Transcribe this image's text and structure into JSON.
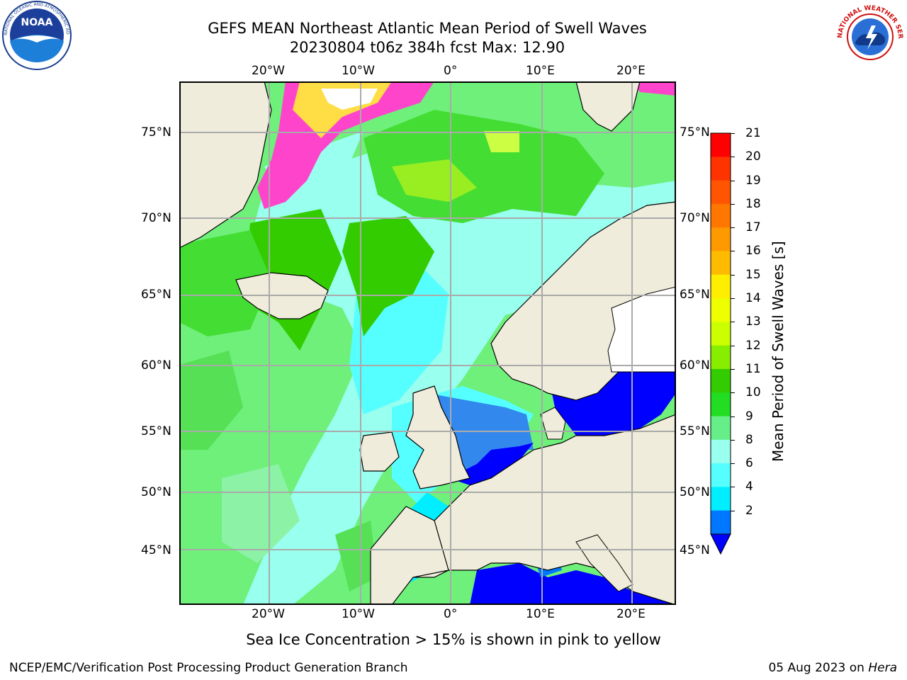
{
  "title_line1": "GEFS MEAN Northeast Atlantic Mean Period of Swell Waves",
  "title_line2": "20230804 t06z 384h fcst   Max: 12.90",
  "logos": {
    "left": "NOAA",
    "right": "NATIONAL WEATHER SERVICE"
  },
  "axes": {
    "top_lon_labels": [
      "20°W",
      "10°W",
      "0°",
      "10°E",
      "20°E"
    ],
    "bottom_lon_labels": [
      "20°W",
      "10°W",
      "0°",
      "10°E",
      "20°E"
    ],
    "left_lat_labels": [
      "75°N",
      "70°N",
      "65°N",
      "60°N",
      "55°N",
      "50°N",
      "45°N"
    ],
    "right_lat_labels": [
      "75°N",
      "70°N",
      "65°N",
      "60°N",
      "55°N",
      "50°N",
      "45°N"
    ]
  },
  "colorbar": {
    "label": "Mean Period of Swell Waves [s]",
    "ticks": [
      "21",
      "20",
      "19",
      "18",
      "17",
      "16",
      "15",
      "14",
      "13",
      "12",
      "11",
      "10",
      "9",
      "8",
      "6",
      "4",
      "2"
    ],
    "colors": [
      "#ff0000",
      "#ff3300",
      "#ff5500",
      "#ff7700",
      "#ff9900",
      "#ffbb00",
      "#ffee00",
      "#eeff00",
      "#ccff00",
      "#88ee00",
      "#33cc00",
      "#22dd22",
      "#66ee88",
      "#99ffee",
      "#55ffff",
      "#00eeff",
      "#0077ff"
    ],
    "extend_color": "#0000ff"
  },
  "legend_colors": {
    "land": "#efecdc",
    "ice_pink": "#ff44cc",
    "ice_yellow": "#ffdd44",
    "grid": "#aaaaaa"
  },
  "footer_note": "Sea Ice Concentration > 15% is shown in pink to yellow",
  "footer_left": "NCEP/EMC/Verification Post Processing Product Generation Branch",
  "footer_right_date": "05 Aug 2023 on ",
  "footer_right_host": "Hera"
}
